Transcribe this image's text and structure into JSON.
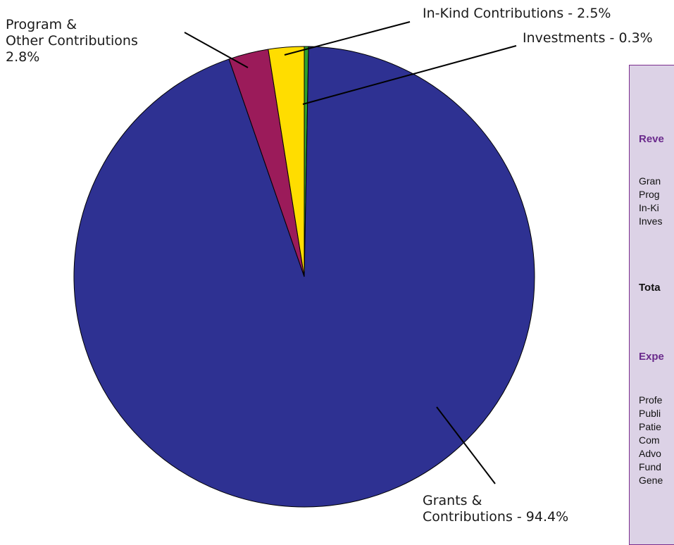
{
  "chart_data": {
    "type": "pie",
    "title": "",
    "slices": [
      {
        "label": "Investments",
        "value": 0.3,
        "color": "#2ea02e"
      },
      {
        "label": "Grants & Contributions",
        "value": 94.4,
        "color": "#2e3192"
      },
      {
        "label": "Program & Other Contributions",
        "value": 2.8,
        "color": "#9b1b5a"
      },
      {
        "label": "In-Kind Contributions",
        "value": 2.5,
        "color": "#ffdd00"
      }
    ],
    "start_angle_deg": 0,
    "direction": "clockwise"
  },
  "labels": {
    "program": [
      "Program &",
      "Other Contributions",
      "2.8%"
    ],
    "inkind": "In-Kind Contributions - 2.5%",
    "investments": "Investments - 0.3%",
    "grants": [
      "Grants &",
      "Contributions - 94.4%"
    ]
  },
  "summary_panel": {
    "revenue_heading": "Reve",
    "revenue_items": [
      "Gran",
      "Prog",
      "In-Ki",
      "Inves"
    ],
    "total_label": "Tota",
    "expense_heading": "Expe",
    "expense_items": [
      "Profe",
      "Publi",
      "Patie",
      "Com",
      "Advo",
      "Fund",
      "Gene"
    ],
    "colors": {
      "background": "#dcd2e6",
      "border": "#7b2d8e",
      "heading": "#6a2a8c"
    }
  }
}
